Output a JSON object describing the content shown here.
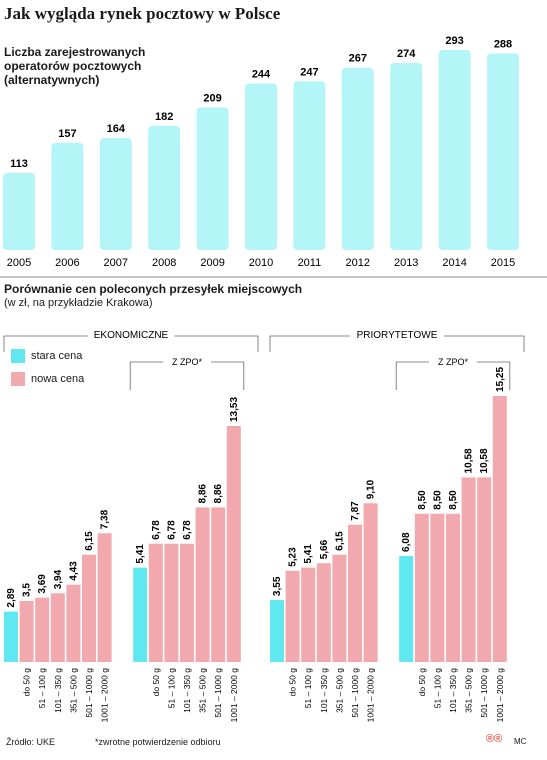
{
  "title": "Jak wygląda rynek pocztowy w Polsce",
  "source": "Źródło: UKE",
  "footnote": "*zwrotne potwierdzenie odbioru",
  "credit": "MC",
  "logo": "®®",
  "colors": {
    "cyan": "#5fe8ef",
    "pink": "#f2a9ad",
    "top_cyan": "#b4f5f8"
  },
  "chart_data": [
    {
      "type": "bar",
      "title": "Liczba zarejestrowanych operatorów pocztowych (alternatywnych)",
      "title_lines": [
        "Liczba zarejestrowanych",
        "operatorów pocztowych",
        "(alternatywnych)"
      ],
      "categories": [
        "2005",
        "2006",
        "2007",
        "2008",
        "2009",
        "2010",
        "2011",
        "2012",
        "2013",
        "2014",
        "2015"
      ],
      "values": [
        113,
        157,
        164,
        182,
        209,
        244,
        247,
        267,
        274,
        293,
        288
      ],
      "ylim": [
        0,
        300
      ]
    },
    {
      "type": "bar",
      "title": "Porównanie cen poleconych przesyłek miejscowych",
      "note": "(w zł, na przykładzie Krakowa)",
      "legend": [
        "stara cena",
        "nowa cena"
      ],
      "ylim": [
        0,
        15.25
      ],
      "groups": [
        {
          "name": "EKONOMICZNE",
          "old": {
            "label": "2,89",
            "value": 2.89
          },
          "new": [
            {
              "category": "do 50 g",
              "label": "3,5",
              "value": 3.5
            },
            {
              "category": "51 – 100 g",
              "label": "3,69",
              "value": 3.69
            },
            {
              "category": "101 – 350 g",
              "label": "3,94",
              "value": 3.94
            },
            {
              "category": "351 – 500 g",
              "label": "4,43",
              "value": 4.43
            },
            {
              "category": "501 – 1000 g",
              "label": "6,15",
              "value": 6.15
            },
            {
              "category": "1001 – 2000 g",
              "label": "7,38",
              "value": 7.38
            }
          ],
          "zpo_label": "Z ZPO*",
          "zpo_old": {
            "label": "5,41",
            "value": 5.41
          },
          "zpo_new": [
            {
              "category": "do 50 g",
              "label": "6,78",
              "value": 6.78
            },
            {
              "category": "51 – 100 g",
              "label": "6,78",
              "value": 6.78
            },
            {
              "category": "101 – 350 g",
              "label": "6,78",
              "value": 6.78
            },
            {
              "category": "351 – 500 g",
              "label": "8,86",
              "value": 8.86
            },
            {
              "category": "501 – 1000 g",
              "label": "8,86",
              "value": 8.86
            },
            {
              "category": "1001 – 2000 g",
              "label": "13,53",
              "value": 13.53
            }
          ]
        },
        {
          "name": "PRIORYTETOWE",
          "old": {
            "label": "3,55",
            "value": 3.55
          },
          "new": [
            {
              "category": "do 50 g",
              "label": "5,23",
              "value": 5.23
            },
            {
              "category": "51 – 100 g",
              "label": "5,41",
              "value": 5.41
            },
            {
              "category": "101 – 350 g",
              "label": "5,66",
              "value": 5.66
            },
            {
              "category": "351 – 500 g",
              "label": "6,15",
              "value": 6.15
            },
            {
              "category": "501 – 1000 g",
              "label": "7,87",
              "value": 7.87
            },
            {
              "category": "1001 – 2000 g",
              "label": "9,10",
              "value": 9.1
            }
          ],
          "zpo_label": "Z ZPO*",
          "zpo_old": {
            "label": "6,08",
            "value": 6.08
          },
          "zpo_new": [
            {
              "category": "do 50 g",
              "label": "8,50",
              "value": 8.5
            },
            {
              "category": "51 – 100 g",
              "label": "8,50",
              "value": 8.5
            },
            {
              "category": "101 – 350 g",
              "label": "8,50",
              "value": 8.5
            },
            {
              "category": "351 – 500 g",
              "label": "10,58",
              "value": 10.58
            },
            {
              "category": "501 – 1000 g",
              "label": "10,58",
              "value": 10.58
            },
            {
              "category": "1001 – 2000 g",
              "label": "15,25",
              "value": 15.25
            }
          ]
        }
      ]
    }
  ]
}
